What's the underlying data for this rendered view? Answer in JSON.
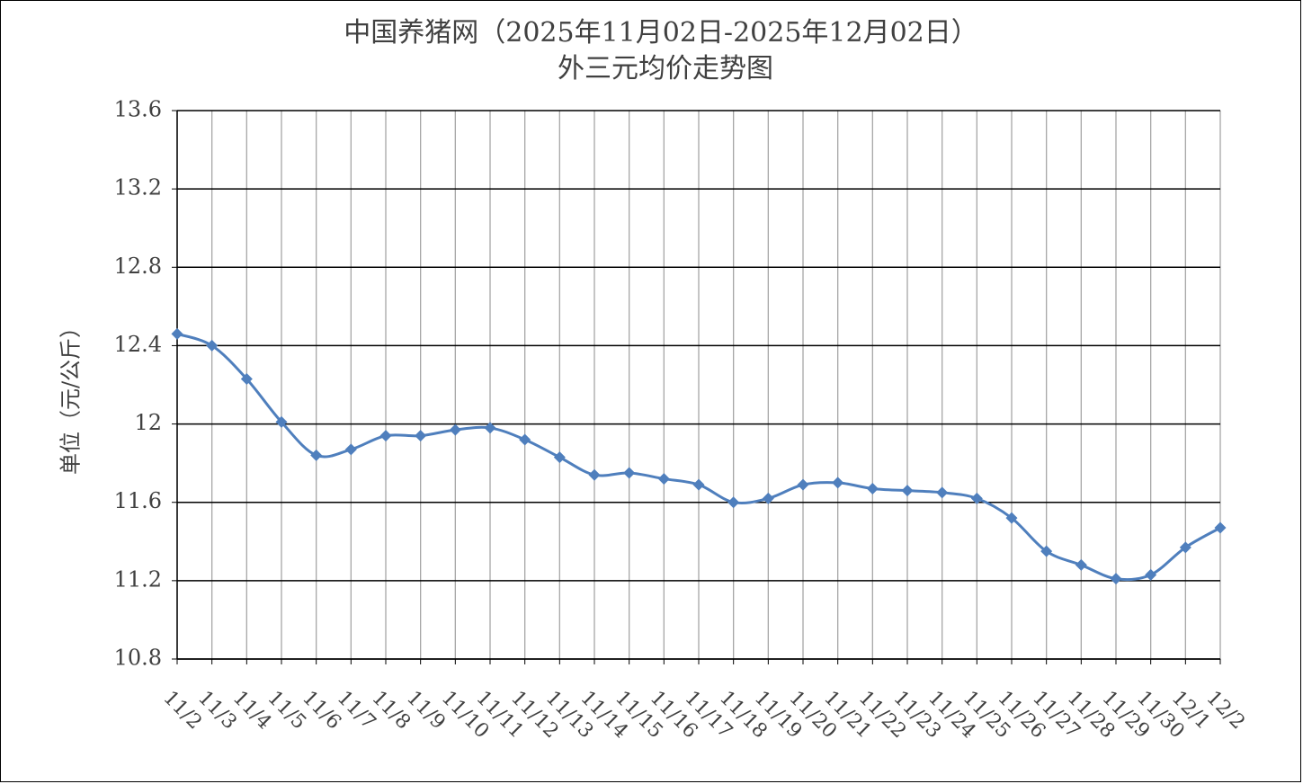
{
  "chart_data": {
    "type": "line",
    "title": "中国养猪网（2025年11月02日-2025年12月02日）",
    "subtitle": "外三元均价走势图",
    "y_label": "单位（元/公斤）",
    "categories": [
      "11/2",
      "11/3",
      "11/4",
      "11/5",
      "11/6",
      "11/7",
      "11/8",
      "11/9",
      "11/10",
      "11/11",
      "11/12",
      "11/13",
      "11/14",
      "11/15",
      "11/16",
      "11/17",
      "11/18",
      "11/19",
      "11/20",
      "11/21",
      "11/22",
      "11/23",
      "11/24",
      "11/25",
      "11/26",
      "11/27",
      "11/28",
      "11/29",
      "11/30",
      "12/1",
      "12/2"
    ],
    "series": [
      {
        "color": "#4f7fbd",
        "values": [
          12.46,
          12.4,
          12.23,
          12.01,
          11.84,
          11.87,
          11.94,
          11.94,
          11.97,
          11.98,
          11.92,
          11.83,
          11.74,
          11.75,
          11.72,
          11.69,
          11.6,
          11.62,
          11.69,
          11.7,
          11.67,
          11.66,
          11.65,
          11.62,
          11.52,
          11.35,
          11.28,
          11.21,
          11.23,
          11.37,
          11.47
        ]
      }
    ],
    "ylim": [
      10.8,
      13.6
    ],
    "yticks": [
      10.8,
      11.2,
      11.6,
      12,
      12.4,
      12.8,
      13.2,
      13.6
    ],
    "grid": true,
    "smooth": true
  }
}
